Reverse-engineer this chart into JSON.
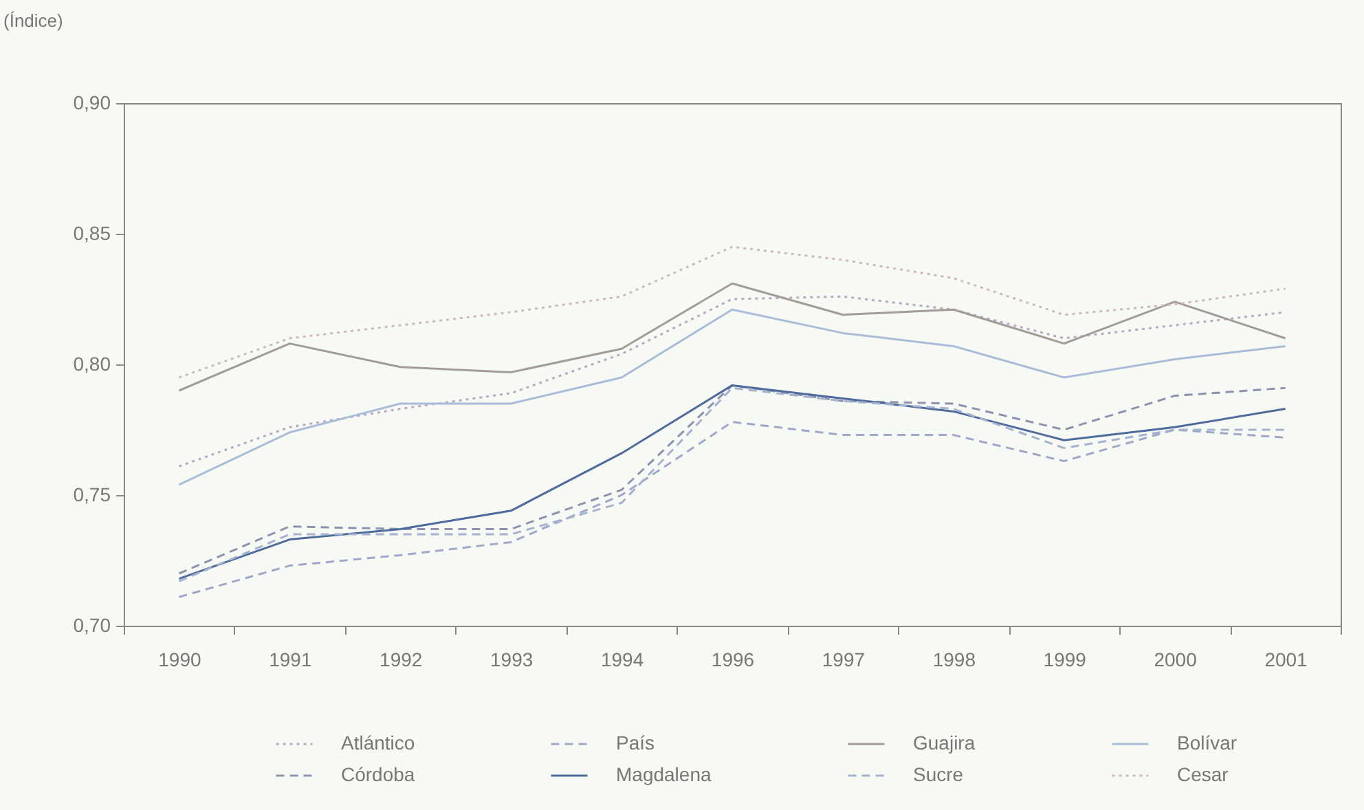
{
  "chart_data": {
    "type": "line",
    "ylabel": "(Índice)",
    "categories": [
      "1990",
      "1991",
      "1992",
      "1993",
      "1994",
      "1996",
      "1997",
      "1998",
      "1999",
      "2000",
      "2001"
    ],
    "series": [
      {
        "name": "Atlántico",
        "color": "#b7a9c4",
        "line_style": "dotted",
        "values": [
          0.761,
          0.776,
          0.783,
          0.789,
          0.804,
          0.825,
          0.826,
          0.821,
          0.81,
          0.815,
          0.82
        ]
      },
      {
        "name": "País",
        "color": "#9fa8c8",
        "line_style": "dashed",
        "values": [
          0.711,
          0.723,
          0.727,
          0.732,
          0.75,
          0.778,
          0.773,
          0.773,
          0.763,
          0.775,
          0.772
        ]
      },
      {
        "name": "Guajira",
        "color": "#a39c96",
        "line_style": "solid",
        "values": [
          0.79,
          0.808,
          0.799,
          0.797,
          0.806,
          0.831,
          0.819,
          0.821,
          0.808,
          0.824,
          0.81
        ]
      },
      {
        "name": "Bolívar",
        "color": "#a9bcd8",
        "line_style": "solid",
        "values": [
          0.754,
          0.774,
          0.785,
          0.785,
          0.795,
          0.821,
          0.812,
          0.807,
          0.795,
          0.802,
          0.807
        ]
      },
      {
        "name": "Córdoba",
        "color": "#8b93ad",
        "line_style": "dashed",
        "values": [
          0.72,
          0.738,
          0.737,
          0.737,
          0.752,
          0.792,
          0.786,
          0.785,
          0.775,
          0.788,
          0.791
        ]
      },
      {
        "name": "Magdalena",
        "color": "#4e6b9c",
        "line_style": "solid",
        "values": [
          0.718,
          0.733,
          0.737,
          0.744,
          0.766,
          0.792,
          0.787,
          0.782,
          0.771,
          0.776,
          0.783
        ]
      },
      {
        "name": "Sucre",
        "color": "#a4b2d0",
        "line_style": "dashed",
        "values": [
          0.717,
          0.735,
          0.735,
          0.735,
          0.747,
          0.791,
          0.786,
          0.783,
          0.768,
          0.775,
          0.775
        ]
      },
      {
        "name": "Cesar",
        "color": "#cdb8c0",
        "line_style": "dotted",
        "values": [
          0.795,
          0.81,
          0.815,
          0.82,
          0.826,
          0.845,
          0.84,
          0.833,
          0.819,
          0.823,
          0.829
        ]
      }
    ],
    "ylim": [
      0.7,
      0.9
    ],
    "yticks": [
      {
        "value": 0.7,
        "label": "0,70"
      },
      {
        "value": 0.75,
        "label": "0,75"
      },
      {
        "value": 0.8,
        "label": "0,80"
      },
      {
        "value": 0.85,
        "label": "0,85"
      },
      {
        "value": 0.9,
        "label": "0,90"
      }
    ],
    "grid": false,
    "legend": "bottom",
    "marker": "none"
  }
}
